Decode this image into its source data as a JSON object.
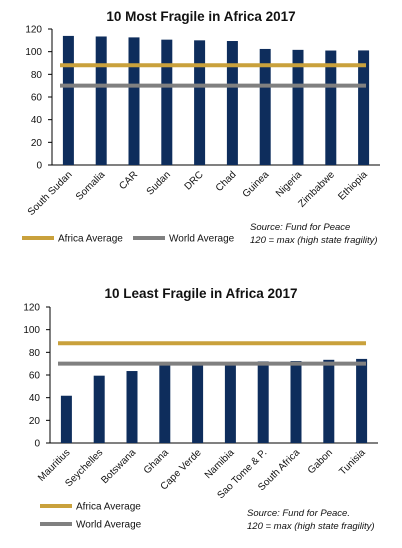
{
  "chart_data": [
    {
      "type": "bar",
      "title": "10 Most Fragile in Africa 2017",
      "categories": [
        "South Sudan",
        "Somalia",
        "CAR",
        "Sudan",
        "DRC",
        "Chad",
        "Guinea",
        "Nigeria",
        "Zimbabwe",
        "Ethiopia"
      ],
      "values": [
        113.9,
        113.4,
        112.6,
        110.6,
        110.0,
        109.4,
        102.4,
        101.6,
        101.0,
        101.1
      ],
      "ylim": [
        0,
        120
      ],
      "yticks": [
        0,
        20,
        40,
        60,
        80,
        100,
        120
      ],
      "grid": false,
      "reference_lines": [
        {
          "name": "Africa Average",
          "value": 88,
          "color": "#c9a13c"
        },
        {
          "name": "World Average",
          "value": 70,
          "color": "#808080"
        }
      ],
      "bar_color": "#0e2d5c",
      "legend_position": "bottom",
      "annotation": [
        "Source: Fund for Peace",
        "120 = max (high state fragility)"
      ]
    },
    {
      "type": "bar",
      "title": "10 Least Fragile in Africa 2017",
      "categories": [
        "Mauritius",
        "Seychelles",
        "Botswana",
        "Ghana",
        "Cape Verde",
        "Namibia",
        "Sao Tome & P.",
        "South Africa",
        "Gabon",
        "Tunisia"
      ],
      "values": [
        41.7,
        59.4,
        63.5,
        69.8,
        70.1,
        70.4,
        72.0,
        72.3,
        73.4,
        74.2
      ],
      "ylim": [
        0,
        120
      ],
      "yticks": [
        0,
        20,
        40,
        60,
        80,
        100,
        120
      ],
      "grid": false,
      "reference_lines": [
        {
          "name": "Africa Average",
          "value": 88,
          "color": "#c9a13c"
        },
        {
          "name": "World Average",
          "value": 70,
          "color": "#808080"
        }
      ],
      "bar_color": "#0e2d5c",
      "legend_position": "bottom",
      "annotation": [
        "Source: Fund for Peace.",
        "120 = max (high state fragility)"
      ]
    }
  ]
}
